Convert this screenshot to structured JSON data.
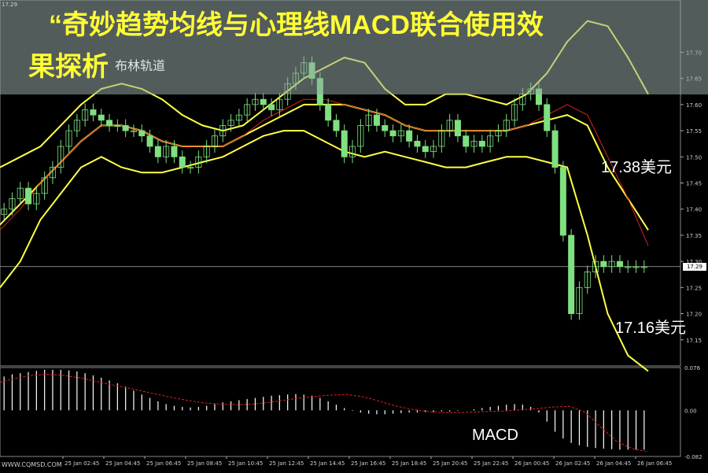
{
  "title": {
    "line1": "“奇妙趋势均线与心理线MACD联合使用效",
    "line2": "果探析",
    "overlay": "布林轨道"
  },
  "corner_price": "17.29",
  "watermark": "WWW.CQMSD.COM",
  "current_price_tag": "17.29",
  "colors": {
    "background": "#000000",
    "bollinger": "#ffff44",
    "ma": "#dd2222",
    "candle": "#7fe07f",
    "macd_hist": "#ffffff",
    "macd_signal": "#dd2222",
    "title": "#ffff33"
  },
  "annotations": {
    "upper": "17.38美元",
    "lower": "17.16美元",
    "macd": "MACD"
  },
  "chart_data": [
    {
      "type": "candlestick",
      "ylim": [
        17.1,
        17.8
      ],
      "y_ticks": [
        "17.70",
        "17.65",
        "17.60",
        "17.55",
        "17.50",
        "17.45",
        "17.40",
        "17.35",
        "17.30",
        "17.25",
        "17.20",
        "17.15"
      ],
      "x_ticks": [
        "25 Jan 02:45",
        "25 Jan 04:45",
        "25 Jan 06:45",
        "25 Jan 08:45",
        "25 Jan 10:45",
        "25 Jan 12:45",
        "25 Jan 14:45",
        "25 Jan 16:45",
        "25 Jan 18:45",
        "25 Jan 20:45",
        "25 Jan 22:45",
        "26 Jan 00:45",
        "26 Jan 02:45",
        "26 Jan 04:45",
        "26 Jan 06:45"
      ],
      "current_price": 17.29,
      "close": [
        17.4,
        17.42,
        17.44,
        17.41,
        17.43,
        17.46,
        17.48,
        17.52,
        17.55,
        17.57,
        17.59,
        17.58,
        17.57,
        17.56,
        17.56,
        17.55,
        17.55,
        17.54,
        17.52,
        17.5,
        17.52,
        17.5,
        17.48,
        17.48,
        17.5,
        17.52,
        17.54,
        17.56,
        17.57,
        17.58,
        17.6,
        17.61,
        17.6,
        17.59,
        17.61,
        17.64,
        17.66,
        17.68,
        17.65,
        17.6,
        17.57,
        17.55,
        17.5,
        17.52,
        17.56,
        17.58,
        17.56,
        17.55,
        17.54,
        17.55,
        17.53,
        17.52,
        17.51,
        17.52,
        17.55,
        17.57,
        17.54,
        17.52,
        17.53,
        17.52,
        17.54,
        17.55,
        17.57,
        17.6,
        17.62,
        17.63,
        17.6,
        17.55,
        17.48,
        17.35,
        17.2,
        17.25,
        17.28,
        17.3,
        17.29,
        17.3,
        17.29,
        17.29,
        17.29,
        17.29
      ],
      "series": [
        {
          "name": "",
          "values": [
            17.48,
            17.5,
            17.52,
            17.56,
            17.6,
            17.63,
            17.64,
            17.63,
            17.61,
            17.58,
            17.56,
            17.55,
            17.56,
            17.59,
            17.62,
            17.65,
            17.67,
            17.69,
            17.68,
            17.63,
            17.6,
            17.6,
            17.62,
            17.62,
            17.61,
            17.6,
            17.62,
            17.66,
            17.72,
            17.76,
            17.75,
            17.69,
            17.62
          ]
        },
        {
          "name": "",
          "values": [
            17.37,
            17.41,
            17.45,
            17.49,
            17.53,
            17.56,
            17.56,
            17.55,
            17.53,
            17.52,
            17.52,
            17.52,
            17.54,
            17.56,
            17.58,
            17.6,
            17.6,
            17.6,
            17.59,
            17.58,
            17.56,
            17.55,
            17.55,
            17.55,
            17.55,
            17.55,
            17.56,
            17.57,
            17.58,
            17.56,
            17.48,
            17.42,
            17.36
          ]
        },
        {
          "name": "",
          "values": [
            17.25,
            17.3,
            17.38,
            17.43,
            17.48,
            17.5,
            17.48,
            17.47,
            17.47,
            17.48,
            17.49,
            17.5,
            17.52,
            17.54,
            17.55,
            17.55,
            17.53,
            17.51,
            17.5,
            17.51,
            17.5,
            17.49,
            17.48,
            17.48,
            17.49,
            17.5,
            17.5,
            17.49,
            17.48,
            17.35,
            17.2,
            17.12,
            17.09
          ]
        },
        {
          "name": "",
          "values": [
            17.36,
            17.4,
            17.45,
            17.49,
            17.53,
            17.56,
            17.56,
            17.55,
            17.53,
            17.52,
            17.52,
            17.52,
            17.54,
            17.57,
            17.59,
            17.61,
            17.61,
            17.6,
            17.59,
            17.58,
            17.56,
            17.55,
            17.55,
            17.55,
            17.55,
            17.55,
            17.56,
            17.58,
            17.6,
            17.58,
            17.5,
            17.42,
            17.33
          ]
        }
      ]
    },
    {
      "type": "bar",
      "ylim": [
        -0.082,
        0.076
      ],
      "y_ticks": [
        "0.076",
        "0.00",
        "-0.082"
      ],
      "values": [
        0.06,
        0.064,
        0.066,
        0.068,
        0.07,
        0.072,
        0.072,
        0.072,
        0.071,
        0.069,
        0.066,
        0.062,
        0.058,
        0.053,
        0.048,
        0.042,
        0.035,
        0.028,
        0.022,
        0.016,
        0.011,
        0.008,
        0.006,
        0.005,
        0.006,
        0.008,
        0.011,
        0.014,
        0.016,
        0.018,
        0.02,
        0.022,
        0.024,
        0.026,
        0.027,
        0.028,
        0.029,
        0.028,
        0.026,
        0.022,
        0.016,
        0.01,
        0.004,
        -0.001,
        -0.004,
        -0.006,
        -0.007,
        -0.007,
        -0.006,
        -0.005,
        -0.004,
        -0.004,
        -0.003,
        -0.003,
        -0.002,
        -0.002,
        -0.001,
        0.0,
        0.002,
        0.004,
        0.006,
        0.008,
        0.01,
        0.011,
        0.01,
        0.006,
        -0.004,
        -0.02,
        -0.038,
        -0.05,
        -0.058,
        -0.062,
        -0.065,
        -0.067,
        -0.068,
        -0.069,
        -0.07,
        -0.07,
        -0.07,
        -0.07
      ],
      "signal": [
        0.05,
        0.057,
        0.062,
        0.064,
        0.062,
        0.058,
        0.052,
        0.046,
        0.04,
        0.034,
        0.028,
        0.022,
        0.017,
        0.013,
        0.011,
        0.01,
        0.011,
        0.014,
        0.018,
        0.022,
        0.025,
        0.027,
        0.028,
        0.024,
        0.016,
        0.008,
        0.002,
        -0.002,
        -0.004,
        -0.004,
        -0.003,
        -0.002,
        -0.001,
        0.001,
        0.003,
        0.006,
        0.007,
        -0.003,
        -0.03,
        -0.055,
        -0.068,
        -0.074
      ]
    }
  ]
}
